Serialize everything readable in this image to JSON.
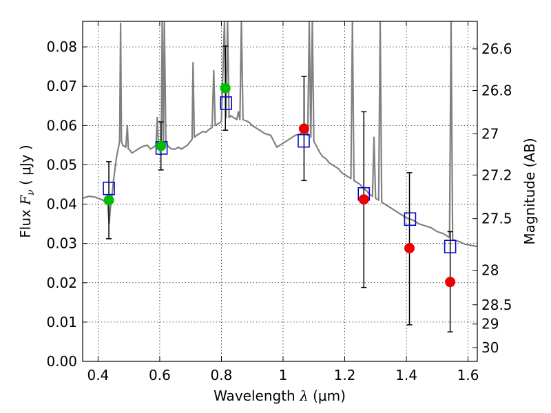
{
  "chart_data": {
    "type": "scatter",
    "xlabel": "Wavelength  λ (μm)",
    "ylabel": "Flux  F_ν  ( μJy )",
    "ylabel_parts": {
      "prefix": "Flux  ",
      "symbol": "F",
      "subscript": "ν",
      "suffix": "  ( μJy )"
    },
    "xlabel_parts": {
      "prefix": "Wavelength  ",
      "symbol": "λ",
      "suffix": " (μm)"
    },
    "right_ylabel": "Magnitude (AB)",
    "xlim": [
      0.35,
      1.63
    ],
    "ylim": [
      0.0,
      0.0865
    ],
    "x_ticks": [
      {
        "v": 0.4,
        "label": "0.4"
      },
      {
        "v": 0.6,
        "label": "0.6"
      },
      {
        "v": 0.8,
        "label": "0.8"
      },
      {
        "v": 1.0,
        "label": "1"
      },
      {
        "v": 1.2,
        "label": "1.2"
      },
      {
        "v": 1.4,
        "label": "1.4"
      },
      {
        "v": 1.6,
        "label": "1.6"
      }
    ],
    "y_ticks": [
      {
        "v": 0.0,
        "label": "0.00"
      },
      {
        "v": 0.01,
        "label": "0.01"
      },
      {
        "v": 0.02,
        "label": "0.02"
      },
      {
        "v": 0.03,
        "label": "0.03"
      },
      {
        "v": 0.04,
        "label": "0.04"
      },
      {
        "v": 0.05,
        "label": "0.05"
      },
      {
        "v": 0.06,
        "label": "0.06"
      },
      {
        "v": 0.07,
        "label": "0.07"
      },
      {
        "v": 0.08,
        "label": "0.08"
      }
    ],
    "right_ticks": [
      {
        "flux": 0.0795,
        "label": "26.6"
      },
      {
        "flux": 0.0689,
        "label": "26.8"
      },
      {
        "flux": 0.0579,
        "label": "27"
      },
      {
        "flux": 0.0474,
        "label": "27.2"
      },
      {
        "flux": 0.0363,
        "label": "27.5"
      },
      {
        "flux": 0.0232,
        "label": "28"
      },
      {
        "flux": 0.0144,
        "label": "28.5"
      },
      {
        "flux": 0.0095,
        "label": "29"
      },
      {
        "flux": 0.0035,
        "label": "30"
      }
    ],
    "grid": true,
    "series": [
      {
        "name": "model spectrum",
        "kind": "line",
        "color": "#808080",
        "points": [
          [
            0.35,
            0.0415
          ],
          [
            0.37,
            0.042
          ],
          [
            0.39,
            0.0418
          ],
          [
            0.41,
            0.0412
          ],
          [
            0.42,
            0.0408
          ],
          [
            0.425,
            0.0405
          ],
          [
            0.43,
            0.042
          ],
          [
            0.433,
            0.038
          ],
          [
            0.436,
            0.035
          ],
          [
            0.44,
            0.039
          ],
          [
            0.445,
            0.042
          ],
          [
            0.45,
            0.046
          ],
          [
            0.455,
            0.049
          ],
          [
            0.46,
            0.052
          ],
          [
            0.465,
            0.054
          ],
          [
            0.47,
            0.056
          ],
          [
            0.473,
            0.086
          ],
          [
            0.476,
            0.056
          ],
          [
            0.48,
            0.055
          ],
          [
            0.49,
            0.0545
          ],
          [
            0.495,
            0.06
          ],
          [
            0.498,
            0.054
          ],
          [
            0.5,
            0.054
          ],
          [
            0.51,
            0.053
          ],
          [
            0.52,
            0.0535
          ],
          [
            0.53,
            0.054
          ],
          [
            0.54,
            0.0545
          ],
          [
            0.55,
            0.0548
          ],
          [
            0.56,
            0.055
          ],
          [
            0.57,
            0.054
          ],
          [
            0.58,
            0.0545
          ],
          [
            0.588,
            0.055
          ],
          [
            0.592,
            0.062
          ],
          [
            0.596,
            0.055
          ],
          [
            0.6,
            0.0545
          ],
          [
            0.605,
            0.055
          ],
          [
            0.608,
            0.0865
          ],
          [
            0.612,
            0.0555
          ],
          [
            0.615,
            0.0865
          ],
          [
            0.62,
            0.0555
          ],
          [
            0.63,
            0.0545
          ],
          [
            0.64,
            0.054
          ],
          [
            0.65,
            0.054
          ],
          [
            0.66,
            0.0545
          ],
          [
            0.67,
            0.054
          ],
          [
            0.68,
            0.0545
          ],
          [
            0.69,
            0.055
          ],
          [
            0.7,
            0.056
          ],
          [
            0.705,
            0.0565
          ],
          [
            0.708,
            0.076
          ],
          [
            0.712,
            0.057
          ],
          [
            0.72,
            0.0575
          ],
          [
            0.73,
            0.058
          ],
          [
            0.74,
            0.0585
          ],
          [
            0.75,
            0.0583
          ],
          [
            0.76,
            0.059
          ],
          [
            0.77,
            0.0595
          ],
          [
            0.775,
            0.074
          ],
          [
            0.78,
            0.06
          ],
          [
            0.79,
            0.0605
          ],
          [
            0.8,
            0.061
          ],
          [
            0.81,
            0.0865
          ],
          [
            0.815,
            0.062
          ],
          [
            0.82,
            0.0865
          ],
          [
            0.825,
            0.062
          ],
          [
            0.83,
            0.0625
          ],
          [
            0.84,
            0.062
          ],
          [
            0.85,
            0.0615
          ],
          [
            0.855,
            0.0635
          ],
          [
            0.86,
            0.0615
          ],
          [
            0.865,
            0.0865
          ],
          [
            0.87,
            0.0615
          ],
          [
            0.88,
            0.0612
          ],
          [
            0.89,
            0.0608
          ],
          [
            0.9,
            0.06
          ],
          [
            0.92,
            0.059
          ],
          [
            0.94,
            0.058
          ],
          [
            0.96,
            0.0575
          ],
          [
            0.97,
            0.056
          ],
          [
            0.98,
            0.0545
          ],
          [
            0.99,
            0.055
          ],
          [
            1.0,
            0.0555
          ],
          [
            1.02,
            0.0565
          ],
          [
            1.04,
            0.0575
          ],
          [
            1.06,
            0.058
          ],
          [
            1.07,
            0.0585
          ],
          [
            1.08,
            0.0575
          ],
          [
            1.085,
            0.0865
          ],
          [
            1.09,
            0.057
          ],
          [
            1.095,
            0.0865
          ],
          [
            1.1,
            0.056
          ],
          [
            1.11,
            0.0545
          ],
          [
            1.12,
            0.053
          ],
          [
            1.13,
            0.052
          ],
          [
            1.14,
            0.0515
          ],
          [
            1.15,
            0.0505
          ],
          [
            1.16,
            0.05
          ],
          [
            1.17,
            0.0495
          ],
          [
            1.18,
            0.049
          ],
          [
            1.19,
            0.048
          ],
          [
            1.2,
            0.0475
          ],
          [
            1.21,
            0.047
          ],
          [
            1.22,
            0.0465
          ],
          [
            1.225,
            0.0865
          ],
          [
            1.23,
            0.046
          ],
          [
            1.24,
            0.0455
          ],
          [
            1.25,
            0.045
          ],
          [
            1.26,
            0.044
          ],
          [
            1.27,
            0.0435
          ],
          [
            1.28,
            0.0425
          ],
          [
            1.29,
            0.042
          ],
          [
            1.295,
            0.057
          ],
          [
            1.3,
            0.0415
          ],
          [
            1.31,
            0.041
          ],
          [
            1.315,
            0.0865
          ],
          [
            1.32,
            0.0405
          ],
          [
            1.33,
            0.04
          ],
          [
            1.34,
            0.0395
          ],
          [
            1.35,
            0.039
          ],
          [
            1.36,
            0.0385
          ],
          [
            1.37,
            0.038
          ],
          [
            1.38,
            0.0375
          ],
          [
            1.39,
            0.037
          ],
          [
            1.4,
            0.0365
          ],
          [
            1.42,
            0.036
          ],
          [
            1.44,
            0.035
          ],
          [
            1.46,
            0.0345
          ],
          [
            1.48,
            0.034
          ],
          [
            1.5,
            0.033
          ],
          [
            1.52,
            0.0325
          ],
          [
            1.54,
            0.0315
          ],
          [
            1.545,
            0.0865
          ],
          [
            1.55,
            0.031
          ],
          [
            1.57,
            0.0305
          ],
          [
            1.59,
            0.0298
          ],
          [
            1.61,
            0.0295
          ],
          [
            1.63,
            0.0292
          ]
        ]
      },
      {
        "name": "model photometry",
        "kind": "square",
        "color": "#0000cc",
        "x": [
          0.435,
          0.606,
          0.815,
          1.067,
          1.262,
          1.412,
          1.542
        ],
        "y": [
          0.044,
          0.0543,
          0.0657,
          0.0561,
          0.0426,
          0.0362,
          0.0292
        ]
      },
      {
        "name": "detections",
        "kind": "circle",
        "color": "#00bb00",
        "x": [
          0.435,
          0.604,
          0.813
        ],
        "y": [
          0.041,
          0.0548,
          0.0695
        ],
        "yerr": [
          0.0098,
          0.0061,
          0.0107
        ]
      },
      {
        "name": "upper limits",
        "kind": "circle",
        "color": "#ee0000",
        "x": [
          1.068,
          1.262,
          1.41,
          1.542
        ],
        "y": [
          0.0592,
          0.0412,
          0.0288,
          0.0202
        ],
        "err_low": [
          0.046,
          0.0188,
          0.0093,
          0.0075
        ],
        "err_high": [
          0.0725,
          0.0635,
          0.048,
          0.033
        ]
      }
    ]
  }
}
